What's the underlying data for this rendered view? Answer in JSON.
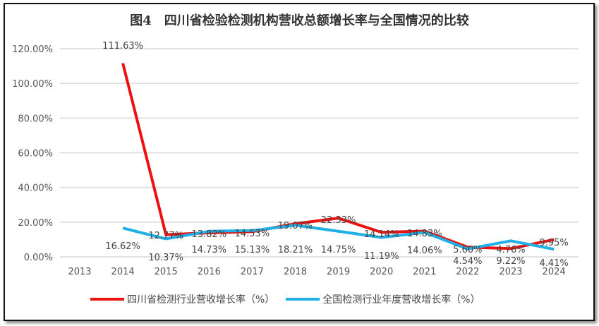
{
  "chart_data": {
    "type": "line",
    "title": "图4　四川省检验检测机构营收总额增长率与全国情况的比较",
    "categories": [
      "2013",
      "2014",
      "2015",
      "2016",
      "2017",
      "2018",
      "2019",
      "2020",
      "2021",
      "2022",
      "2023",
      "2024"
    ],
    "y_ticks": [
      "0.00%",
      "20.00%",
      "40.00%",
      "60.00%",
      "80.00%",
      "100.00%",
      "120.00%"
    ],
    "ylim": [
      0,
      120
    ],
    "grid": true,
    "legend_position": "bottom",
    "series": [
      {
        "name": "四川省检测行业营收增长率（%）",
        "color": "#ee1111",
        "values": [
          null,
          111.63,
          12.77,
          13.82,
          14.53,
          19.07,
          22.33,
          14.14,
          14.83,
          5.6,
          4.76,
          9.95
        ],
        "labels": [
          "",
          "111.63%",
          "12.77%",
          "13.82%",
          "14.53%",
          "19.07%",
          "22.33%",
          "14.14%",
          "14.83%",
          "5.60%",
          "4.76%",
          "9.95%"
        ]
      },
      {
        "name": "全国检测行业年度营收增长率（%）",
        "color": "#1eb0e6",
        "values": [
          null,
          16.62,
          10.37,
          14.73,
          15.13,
          18.21,
          14.75,
          11.19,
          14.06,
          4.54,
          9.22,
          4.41
        ],
        "labels": [
          "",
          "16.62%",
          "10.37%",
          "14.73%",
          "15.13%",
          "18.21%",
          "14.75%",
          "11.19%",
          "14.06%",
          "4.54%",
          "9.22%",
          "4.41%"
        ]
      }
    ]
  }
}
